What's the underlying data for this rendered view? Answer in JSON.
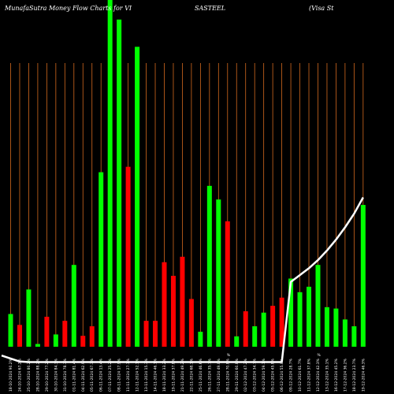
{
  "header": {
    "left": "MunafaSutra  Money Flow  Charts for VI",
    "center": "SASTEEL",
    "right": "(Visa  St"
  },
  "chart_data": {
    "type": "bar",
    "title": "MunafaSutra Money Flow Charts for VISASTEEL (Visa St",
    "ylim": [
      0,
      100
    ],
    "grid": true,
    "grid_color": "#d2691e",
    "background": "#000000",
    "up_color": "#00ff00",
    "down_color": "#ff0000",
    "line_color": "#ffffff",
    "bar_values": [
      12,
      8,
      21,
      1,
      11,
      4.5,
      9.5,
      30,
      4,
      7.5,
      64,
      135,
      120,
      66,
      110,
      9.5,
      9.5,
      31,
      26,
      33,
      17.5,
      5.5,
      59,
      54,
      46,
      3.8,
      13,
      7.5,
      12.5,
      15,
      18,
      25,
      20,
      22,
      30,
      14.5,
      14,
      10,
      7.5,
      52
    ],
    "bar_colors": [
      "g",
      "r",
      "g",
      "g",
      "r",
      "g",
      "r",
      "g",
      "r",
      "r",
      "g",
      "g",
      "g",
      "r",
      "g",
      "r",
      "r",
      "r",
      "r",
      "r",
      "r",
      "g",
      "g",
      "g",
      "r",
      "g",
      "r",
      "g",
      "g",
      "r",
      "r",
      "g",
      "g",
      "g",
      "g",
      "g",
      "g",
      "g",
      "g",
      "g"
    ],
    "line_y": [
      4,
      1.8,
      1.6,
      1.6,
      1.6,
      1.6,
      1.6,
      1.6,
      1.6,
      1.6,
      1.6,
      1.6,
      1.6,
      1.6,
      1.6,
      1.6,
      1.6,
      1.6,
      1.6,
      1.6,
      1.6,
      1.6,
      1.6,
      1.6,
      1.6,
      1.6,
      1.6,
      1.6,
      1.6,
      1.6,
      1.6,
      31,
      33.5,
      36,
      39,
      42.5,
      46.5,
      51,
      56,
      62
    ],
    "x_labels": [
      "18-10-2024 90.2%",
      "24-10-2024 67.2%",
      "25-10-2024 80.2%",
      "28-10-2024 88.2%",
      "29-10-2024 77.2%",
      "30-10-2024 84.3%",
      "31-10-2024 78.3%",
      "01-11-2024 81.4%",
      "04-11-2024 62.9%",
      "05-11-2024 67.3%",
      "06-11-2024 13.4%",
      "07-11-2024 25.2%",
      "08-11-2024 17.9%",
      "11-11-2024 27.1%",
      "12-11-2024 52.1%",
      "13-11-2024 15.3%",
      "14-11-2024 46.1%",
      "18-11-2024 33.2%",
      "19-11-2024 37.8%",
      "21-11-2024 49.2%",
      "22-11-2024 68.1%",
      "25-11-2024 46.6%",
      "26-11-2024 35.7%",
      "27-11-2024 49.0%",
      "28-11-2024 70.8%",
      "29-11-2024 60.8%",
      "02-12-2024 47.2%",
      "03-12-2024 34.7%",
      "04-12-2024 59.1%",
      "05-12-2024 45.8%",
      "06-12-2024 55.0%",
      "09-12-2024 28.7%",
      "10-12-2024 61.7%",
      "11-12-2024 37.8%",
      "12-12-2024 42.3%",
      "13-12-2024 35.1%",
      "16-12-2024 45.2%",
      "17-12-2024 36.2%",
      "18-12-2024 23.7%",
      "19-12-2024 46.3%"
    ],
    "markers": [
      {
        "label": "%",
        "bar_index": 24
      },
      {
        "label": "%",
        "bar_index": 34
      }
    ]
  }
}
